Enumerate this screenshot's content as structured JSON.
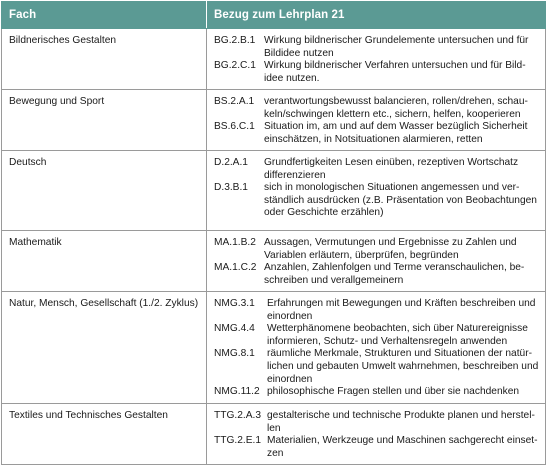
{
  "table": {
    "headers": {
      "fach": "Fach",
      "bezug": "Bezug zum Lehrplan 21"
    },
    "rows": [
      {
        "fach": "Bildnerisches Gestalten",
        "entries": [
          {
            "code": "BG.2.B.1",
            "text": "Wirkung bildnerischer Grundelemente untersuchen und für\nBildidee nutzen"
          },
          {
            "code": "BG.2.C.1",
            "text": "Wirkung bildnerischer Verfahren untersuchen und für Bild-\nidee nutzen."
          }
        ]
      },
      {
        "fach": "Bewegung und Sport",
        "entries": [
          {
            "code": "BS.2.A.1",
            "text": "verantwortungsbewusst balancieren, rollen/drehen, schau-\nkeln/schwingen klettern etc., sichern, helfen, kooperieren"
          },
          {
            "code": "BS.6.C.1",
            "text": "Situation im, am und auf dem Wasser bezüglich Sicherheit\neinschätzen, in Notsituationen alarmieren, retten"
          }
        ]
      },
      {
        "fach": "Deutsch",
        "entries": [
          {
            "code": "D.2.A.1",
            "text": "Grundfertigkeiten Lesen einüben, rezeptiven Wortschatz\ndifferenzieren"
          },
          {
            "code": "D.3.B.1",
            "text": "sich in monologischen Situationen angemessen und ver-\nständlich ausdrücken (z.B. Präsentation von Beobachtungen\noder Geschichte erzählen)"
          }
        ]
      },
      {
        "fach": "Mathematik",
        "entries": [
          {
            "code": "MA.1.B.2",
            "text": "Aussagen, Vermutungen und Ergebnisse zu Zahlen und\nVariablen erläutern, überprüfen, begründen"
          },
          {
            "code": "MA.1.C.2",
            "text": "Anzahlen, Zahlenfolgen und Terme veranschaulichen, be-\nschreiben und verallgemeinern"
          }
        ]
      },
      {
        "fach": "Natur, Mensch, Gesellschaft (1./2. Zyklus)",
        "entries": [
          {
            "code": "NMG.3.1",
            "text": "Erfahrungen mit Bewegungen und Kräften beschreiben und\neinordnen"
          },
          {
            "code": "NMG.4.4",
            "text": "Wetterphänomene beobachten, sich über Naturereignisse\ninformieren, Schutz- und Verhaltensregeln anwenden"
          },
          {
            "code": "NMG.8.1",
            "text": "räumliche Merkmale, Strukturen und Situationen der natür-\nlichen und gebauten Umwelt wahrnehmen, beschreiben und\neinordnen"
          },
          {
            "code": "NMG.11.2",
            "text": "philosophische Fragen stellen und über sie nachdenken"
          }
        ]
      },
      {
        "fach": "Textiles und Technisches Gestalten",
        "entries": [
          {
            "code": "TTG.2.A.3",
            "text": "gestalterische und technische Produkte planen und herstel-\nlen"
          },
          {
            "code": "TTG.2.E.1",
            "text": "Materialien, Werkzeuge und Maschinen sachgerecht einset-\nzen"
          }
        ]
      }
    ]
  },
  "colors": {
    "header_bg": "#5b9a94",
    "header_text": "#ffffff",
    "border": "#9a9a9a"
  }
}
